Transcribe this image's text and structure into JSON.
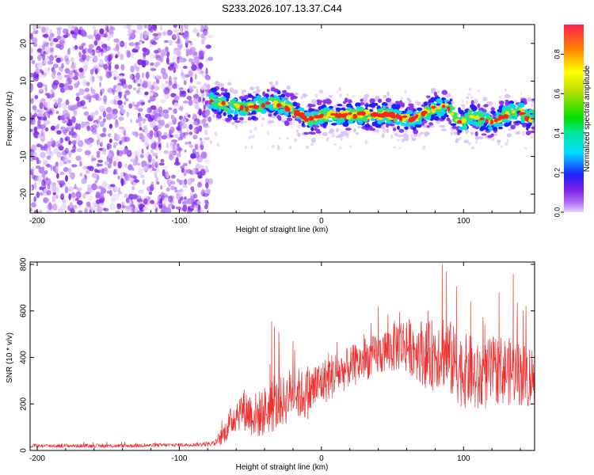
{
  "title": "S233.2026.107.13.37.C44",
  "chart_data": [
    {
      "type": "heatmap",
      "xlabel": "Height of straight line (km)",
      "ylabel": "Frequency (Hz)",
      "xlim": [
        -205,
        150
      ],
      "ylim": [
        -25,
        25
      ],
      "xticks": [
        -200,
        -100,
        0,
        100
      ],
      "xtick_labels": [
        "-200",
        "-100",
        "0",
        "100"
      ],
      "yticks": [
        20,
        10,
        0,
        -10,
        -20
      ],
      "ytick_labels": [
        "20",
        "10",
        "0",
        "-10",
        "-20"
      ],
      "colorbar": {
        "label": "Normalized spectral amplitude",
        "range": [
          0,
          0.95
        ],
        "ticks": [
          0.0,
          0.2,
          0.4,
          0.6,
          0.8
        ],
        "tick_labels": [
          "0.0",
          "0.2",
          "0.4",
          "0.6",
          "0.8"
        ]
      },
      "noise_region": {
        "x_range": [
          -205,
          -78
        ],
        "f_range": [
          -25,
          25
        ]
      },
      "signal_ridge": {
        "x": [
          -78,
          -70,
          -60,
          -50,
          -40,
          -30,
          -20,
          -15,
          -10,
          -5,
          0,
          10,
          20,
          30,
          40,
          50,
          60,
          65,
          70,
          80,
          90,
          95,
          100,
          105,
          110,
          115,
          120,
          125,
          130,
          135,
          140,
          145,
          150
        ],
        "freq": [
          5,
          4,
          3,
          3,
          4,
          4,
          2,
          1,
          0,
          0,
          1,
          1,
          1,
          1,
          1,
          1,
          0,
          0,
          1,
          3,
          3,
          0,
          -1,
          1,
          0,
          0,
          -1,
          0,
          1,
          2,
          2,
          0,
          1
        ]
      },
      "colors": {
        "signal_peak": "#ff2020",
        "noise": "#7a20e8"
      }
    },
    {
      "type": "line",
      "xlabel": "Height of straight line (km)",
      "ylabel": "SNR (10 * v/v)",
      "xlim": [
        -205,
        150
      ],
      "ylim": [
        0,
        810
      ],
      "xticks": [
        -200,
        -100,
        0,
        100
      ],
      "xtick_labels": [
        "-200",
        "-100",
        "0",
        "100"
      ],
      "yticks": [
        0,
        200,
        400,
        600,
        800
      ],
      "ytick_labels": [
        "0",
        "200",
        "400",
        "600",
        "800"
      ],
      "series": [
        {
          "name": "SNR",
          "color": "#f03030",
          "x": [
            -205,
            -180,
            -160,
            -140,
            -120,
            -100,
            -85,
            -75,
            -70,
            -65,
            -60,
            -55,
            -50,
            -45,
            -40,
            -35,
            -30,
            -25,
            -20,
            -15,
            -10,
            -5,
            0,
            5,
            10,
            15,
            20,
            25,
            30,
            35,
            40,
            45,
            50,
            55,
            60,
            65,
            70,
            75,
            80,
            85,
            90,
            95,
            100,
            105,
            110,
            115,
            120,
            125,
            130,
            135,
            140,
            145,
            150
          ],
          "y": [
            20,
            20,
            20,
            20,
            22,
            24,
            26,
            30,
            60,
            110,
            160,
            180,
            160,
            150,
            170,
            180,
            200,
            220,
            260,
            240,
            240,
            270,
            290,
            310,
            330,
            340,
            360,
            370,
            390,
            400,
            410,
            430,
            440,
            460,
            450,
            440,
            430,
            400,
            420,
            440,
            400,
            360,
            340,
            340,
            300,
            320,
            340,
            350,
            340,
            340,
            330,
            320,
            320
          ],
          "amp": [
            8,
            8,
            8,
            8,
            8,
            8,
            9,
            12,
            40,
            60,
            80,
            90,
            100,
            100,
            110,
            110,
            110,
            110,
            120,
            110,
            110,
            110,
            100,
            100,
            100,
            90,
            90,
            90,
            90,
            90,
            90,
            100,
            110,
            120,
            120,
            130,
            140,
            150,
            160,
            170,
            170,
            160,
            160,
            160,
            160,
            150,
            150,
            150,
            150,
            140,
            140,
            140,
            140
          ],
          "spikes": [
            [
              -35,
              555
            ],
            [
              -33,
              530
            ],
            [
              -30,
              510
            ],
            [
              -20,
              470
            ],
            [
              5,
              420
            ],
            [
              30,
              500
            ],
            [
              40,
              620
            ],
            [
              55,
              595
            ],
            [
              60,
              550
            ],
            [
              75,
              600
            ],
            [
              85,
              800
            ],
            [
              88,
              770
            ],
            [
              95,
              705
            ],
            [
              105,
              640
            ],
            [
              115,
              540
            ],
            [
              125,
              680
            ],
            [
              135,
              760
            ],
            [
              142,
              600
            ]
          ]
        }
      ]
    }
  ]
}
